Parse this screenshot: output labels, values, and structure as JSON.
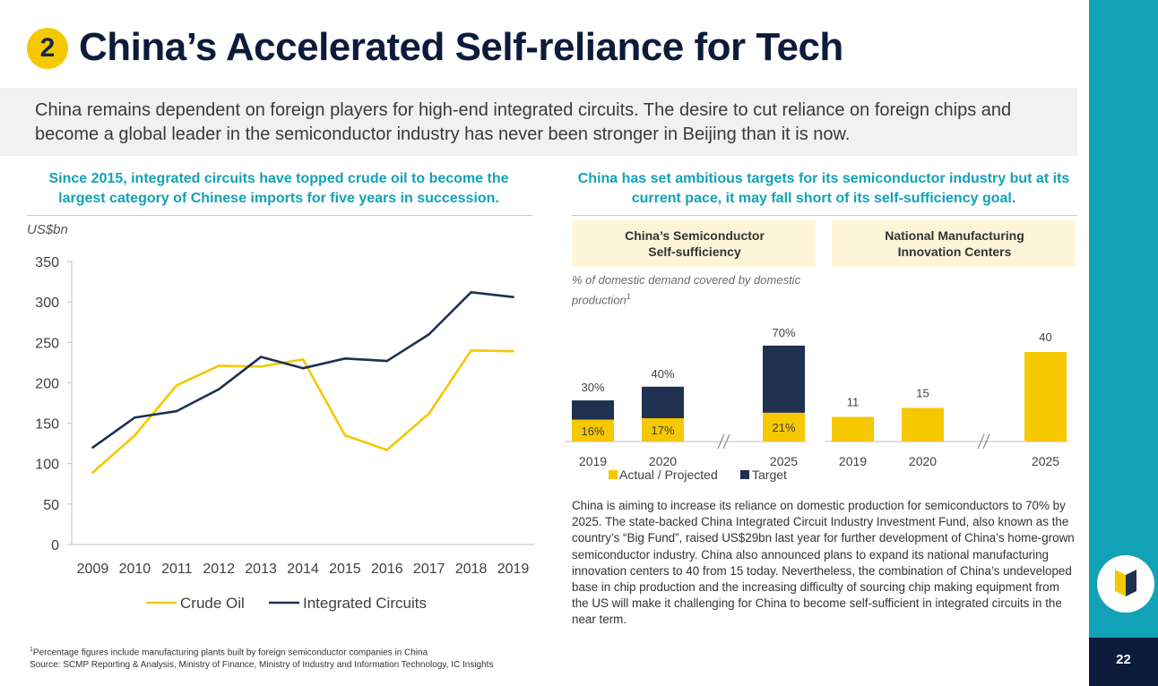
{
  "header": {
    "section_number": "2",
    "title": "China’s Accelerated Self-reliance for Tech",
    "intro": "China remains dependent on foreign players for high-end integrated circuits. The desire to cut reliance on foreign chips and become a global leader in the semiconductor industry has never been stronger in Beijing than it is now."
  },
  "left_section": {
    "heading": "Since 2015, integrated circuits have topped crude oil to become the largest category of Chinese imports for five years in succession.",
    "units": "US$bn"
  },
  "right_section": {
    "heading": "China has set ambitious targets for its semiconductor industry but at its current pace, it may fall short of its self-sufficiency goal.",
    "panel1_title": "China’s Semiconductor Self-sufficiency",
    "panel2_title": "National Manufacturing Innovation Centers",
    "panel1_note": "% of domestic demand covered by domestic production",
    "panel1_note_sup": "1",
    "body": "China is aiming to increase its reliance on domestic production for semiconductors to 70% by 2025. The state-backed China Integrated Circuit Industry Investment Fund, also known as the country’s “Big Fund”, raised US$29bn last year for further development of China’s home-grown semiconductor industry. China also announced plans to expand its national manufacturing innovation centers to 40 from 15 today. Nevertheless, the combination of China’s undeveloped base in chip production and the increasing difficulty of sourcing chip making equipment from the US will make it challenging for China to become self-sufficient in integrated circuits in the near term."
  },
  "footer": {
    "note_marker": "1",
    "note": "Percentage figures include manufacturing plants built by foreign semiconductor companies in China",
    "source": "Source: SCMP Reporting & Analysis, Ministry of Finance, Ministry of Industry and Information Technology, IC Insights",
    "page_number": "22"
  },
  "colors": {
    "navy": "#1f3050",
    "yellow": "#f5c800",
    "teal": "#12a2b7"
  },
  "chart_data": [
    {
      "type": "line",
      "x": [
        "2009",
        "2010",
        "2011",
        "2012",
        "2013",
        "2014",
        "2015",
        "2016",
        "2017",
        "2018",
        "2019"
      ],
      "series": [
        {
          "name": "Crude Oil",
          "color": "#f5c800",
          "values": [
            89,
            135,
            197,
            221,
            220,
            229,
            135,
            117,
            162,
            240,
            239
          ]
        },
        {
          "name": "Integrated Circuits",
          "color": "#1f3050",
          "values": [
            120,
            157,
            165,
            192,
            232,
            218,
            230,
            227,
            260,
            312,
            306
          ]
        }
      ],
      "ylabel": "US$bn",
      "ylim": [
        0,
        350
      ],
      "yticks": [
        0,
        50,
        100,
        150,
        200,
        250,
        300,
        350
      ],
      "legend": "bottom",
      "grid": false
    },
    {
      "type": "bar",
      "stacked": true,
      "categories": [
        "2019",
        "2020",
        "2025"
      ],
      "series": [
        {
          "name": "Actual / Projected",
          "color": "#f5c800",
          "values": [
            16,
            17,
            21
          ],
          "labels": [
            "16%",
            "17%",
            "21%"
          ]
        },
        {
          "name": "Target",
          "color": "#1f3050",
          "values": [
            14,
            23,
            49
          ]
        }
      ],
      "totals": [
        30,
        40,
        70
      ],
      "total_labels": [
        "30%",
        "40%",
        "70%"
      ],
      "axis_break_between": [
        "2020",
        "2025"
      ],
      "legend": "bottom"
    },
    {
      "type": "bar",
      "categories": [
        "2019",
        "2020",
        "2025"
      ],
      "values": [
        11,
        15,
        40
      ],
      "value_labels": [
        "11",
        "15",
        "40"
      ],
      "color": "#f5c800",
      "axis_break_between": [
        "2020",
        "2025"
      ]
    }
  ]
}
